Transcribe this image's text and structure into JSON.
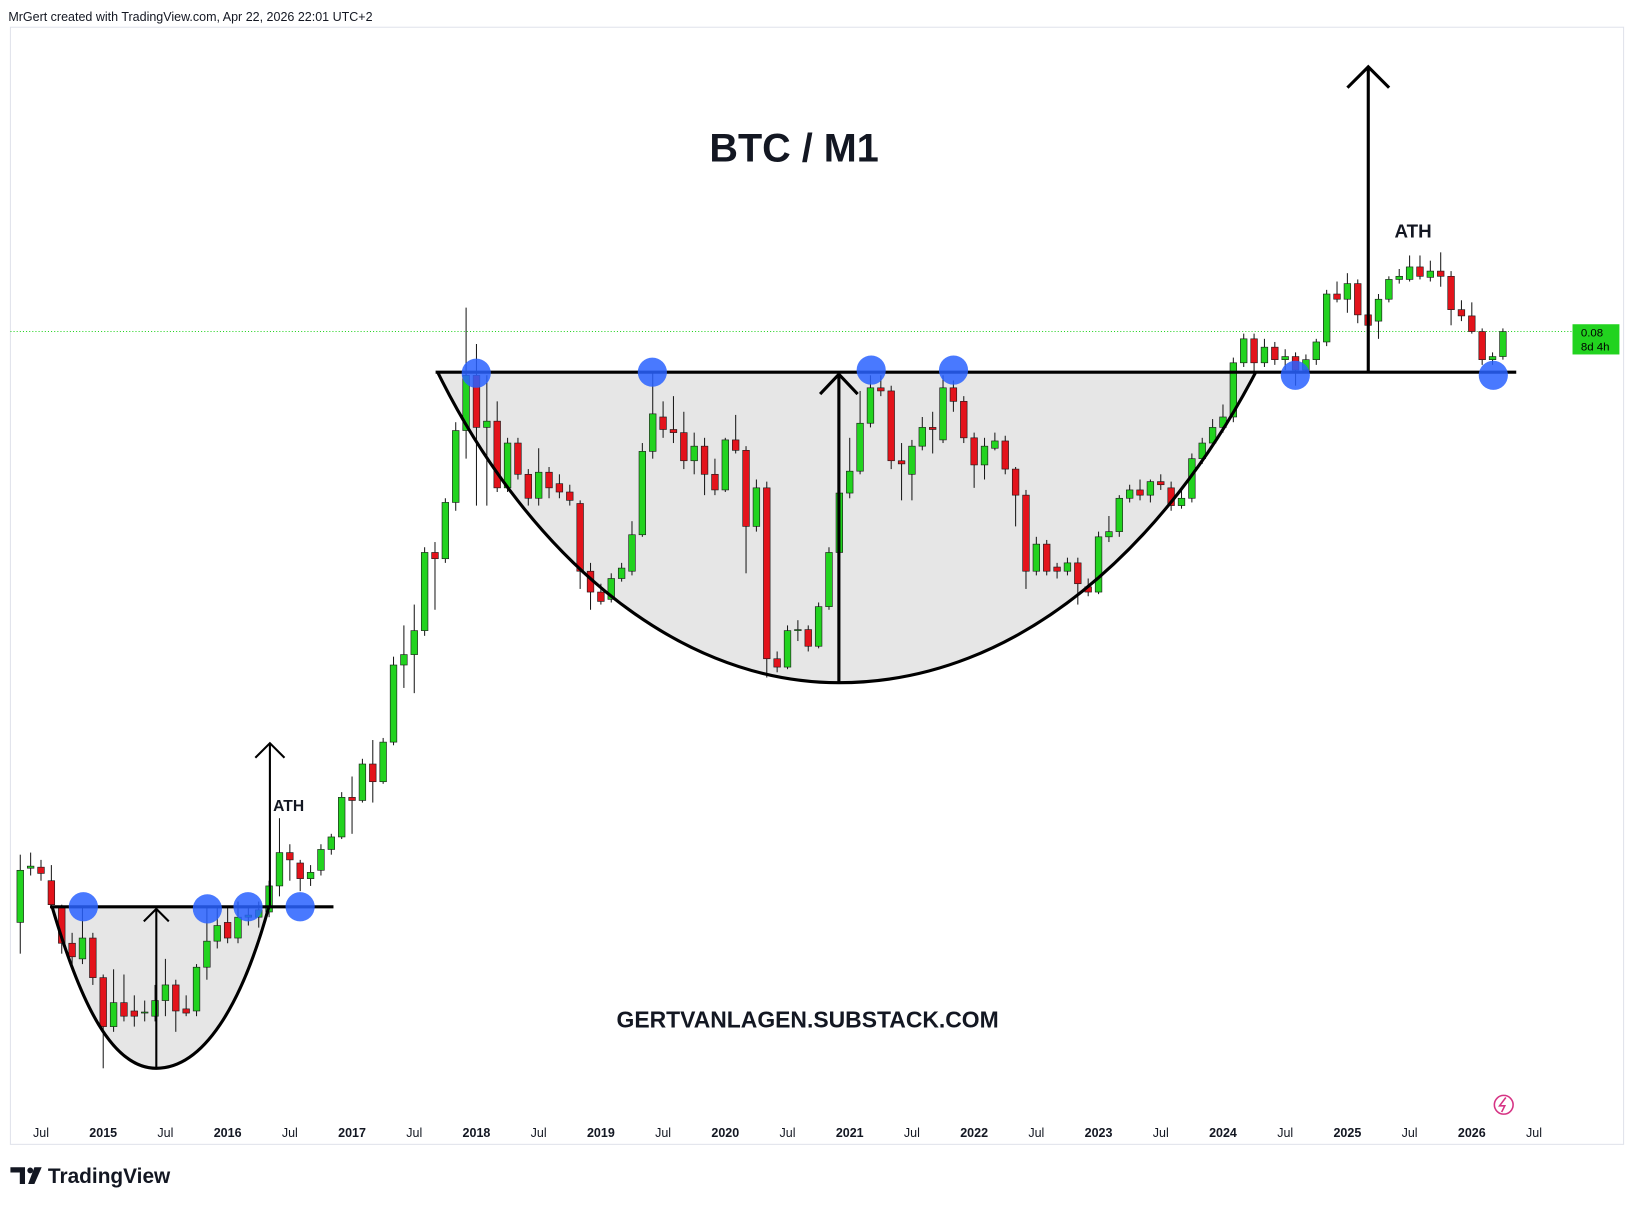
{
  "header": "MrGert created with TradingView.com, Apr 22, 2026 22:01 UTC+2",
  "footer": "TradingView",
  "chart_data": {
    "type": "candlestick",
    "title": "BTC / M1",
    "annotations": [
      "ATH",
      "ATH",
      "GERTVANLAGEN.SUBSTACK.COM"
    ],
    "last_price": 0.08,
    "countdown": "8d 4h",
    "up_color": "#22d31f",
    "down_color": "#e3131b",
    "xlim": [
      "2014-04",
      "2027-04"
    ],
    "ylim": [
      0.0043,
      0.1098
    ],
    "xticks": [
      {
        "value": "2014-07",
        "label": "Jul"
      },
      {
        "value": "2015-01",
        "label": "2015"
      },
      {
        "value": "2015-07",
        "label": "Jul"
      },
      {
        "value": "2016-01",
        "label": "2016"
      },
      {
        "value": "2016-07",
        "label": "Jul"
      },
      {
        "value": "2017-01",
        "label": "2017"
      },
      {
        "value": "2017-07",
        "label": "Jul"
      },
      {
        "value": "2018-01",
        "label": "2018"
      },
      {
        "value": "2018-07",
        "label": "Jul"
      },
      {
        "value": "2019-01",
        "label": "2019"
      },
      {
        "value": "2019-07",
        "label": "Jul"
      },
      {
        "value": "2020-01",
        "label": "2020"
      },
      {
        "value": "2020-07",
        "label": "Jul"
      },
      {
        "value": "2021-01",
        "label": "2021"
      },
      {
        "value": "2021-07",
        "label": "Jul"
      },
      {
        "value": "2022-01",
        "label": "2022"
      },
      {
        "value": "2022-07",
        "label": "Jul"
      },
      {
        "value": "2023-01",
        "label": "2023"
      },
      {
        "value": "2023-07",
        "label": "Jul"
      },
      {
        "value": "2024-01",
        "label": "2024"
      },
      {
        "value": "2024-07",
        "label": "Jul"
      },
      {
        "value": "2025-01",
        "label": "2025"
      },
      {
        "value": "2025-07",
        "label": "Jul"
      },
      {
        "value": "2026-01",
        "label": "2026"
      },
      {
        "value": "2026-07",
        "label": "Jul"
      }
    ],
    "x": [
      "2014-05",
      "2014-06",
      "2014-07",
      "2014-08",
      "2014-09",
      "2014-10",
      "2014-11",
      "2014-12",
      "2015-01",
      "2015-02",
      "2015-03",
      "2015-04",
      "2015-05",
      "2015-06",
      "2015-07",
      "2015-08",
      "2015-09",
      "2015-10",
      "2015-11",
      "2015-12",
      "2016-01",
      "2016-02",
      "2016-03",
      "2016-04",
      "2016-05",
      "2016-06",
      "2016-07",
      "2016-08",
      "2016-09",
      "2016-10",
      "2016-11",
      "2016-12",
      "2017-01",
      "2017-02",
      "2017-03",
      "2017-04",
      "2017-05",
      "2017-06",
      "2017-07",
      "2017-08",
      "2017-09",
      "2017-10",
      "2017-11",
      "2017-12",
      "2018-01",
      "2018-02",
      "2018-03",
      "2018-04",
      "2018-05",
      "2018-06",
      "2018-07",
      "2018-08",
      "2018-09",
      "2018-10",
      "2018-11",
      "2018-12",
      "2019-01",
      "2019-02",
      "2019-03",
      "2019-04",
      "2019-05",
      "2019-06",
      "2019-07",
      "2019-08",
      "2019-09",
      "2019-10",
      "2019-11",
      "2019-12",
      "2020-01",
      "2020-02",
      "2020-03",
      "2020-04",
      "2020-05",
      "2020-06",
      "2020-07",
      "2020-08",
      "2020-09",
      "2020-10",
      "2020-11",
      "2020-12",
      "2021-01",
      "2021-02",
      "2021-03",
      "2021-04",
      "2021-05",
      "2021-06",
      "2021-07",
      "2021-08",
      "2021-09",
      "2021-10",
      "2021-11",
      "2021-12",
      "2022-01",
      "2022-02",
      "2022-03",
      "2022-04",
      "2022-05",
      "2022-06",
      "2022-07",
      "2022-08",
      "2022-09",
      "2022-10",
      "2022-11",
      "2022-12",
      "2023-01",
      "2023-02",
      "2023-03",
      "2023-04",
      "2023-05",
      "2023-06",
      "2023-07",
      "2023-08",
      "2023-09",
      "2023-10",
      "2023-11",
      "2023-12",
      "2024-01",
      "2024-02",
      "2024-03",
      "2024-04",
      "2024-05",
      "2024-06",
      "2024-07",
      "2024-08",
      "2024-09",
      "2024-10",
      "2024-11",
      "2024-12",
      "2025-01",
      "2025-02",
      "2025-03",
      "2025-04",
      "2025-05",
      "2025-06",
      "2025-07",
      "2025-08",
      "2025-09",
      "2025-10",
      "2025-11",
      "2025-12",
      "2026-01",
      "2026-02",
      "2026-03",
      "2026-04"
    ],
    "open": [
      0.0233,
      0.0285,
      0.0286,
      0.0273,
      0.0248,
      0.0213,
      0.0198,
      0.0218,
      0.018,
      0.0133,
      0.0156,
      0.0148,
      0.0146,
      0.0143,
      0.0158,
      0.0173,
      0.015,
      0.0148,
      0.019,
      0.0215,
      0.0233,
      0.0218,
      0.0238,
      0.0238,
      0.0243,
      0.0268,
      0.03,
      0.029,
      0.0275,
      0.0283,
      0.0303,
      0.0315,
      0.0353,
      0.035,
      0.0385,
      0.0368,
      0.0406,
      0.048,
      0.049,
      0.0513,
      0.0588,
      0.0582,
      0.0636,
      0.0705,
      0.0758,
      0.0708,
      0.0714,
      0.065,
      0.0693,
      0.0663,
      0.064,
      0.0665,
      0.0654,
      0.0646,
      0.0635,
      0.057,
      0.055,
      0.0543,
      0.0563,
      0.057,
      0.0605,
      0.0685,
      0.0718,
      0.0706,
      0.0703,
      0.0676,
      0.069,
      0.0663,
      0.0648,
      0.0696,
      0.0686,
      0.0613,
      0.065,
      0.0486,
      0.0478,
      0.0513,
      0.0514,
      0.0498,
      0.0536,
      0.0588,
      0.0645,
      0.0666,
      0.0712,
      0.0746,
      0.0743,
      0.0676,
      0.0663,
      0.069,
      0.0708,
      0.0696,
      0.0746,
      0.0733,
      0.0698,
      0.0672,
      0.0688,
      0.0695,
      0.0668,
      0.0643,
      0.057,
      0.0596,
      0.0574,
      0.057,
      0.0578,
      0.0555,
      0.055,
      0.0603,
      0.0608,
      0.064,
      0.0648,
      0.0643,
      0.0656,
      0.065,
      0.0633,
      0.064,
      0.0678,
      0.0693,
      0.0708,
      0.0718,
      0.077,
      0.0793,
      0.077,
      0.0785,
      0.0773,
      0.0776,
      0.0763,
      0.0773,
      0.079,
      0.0836,
      0.0831,
      0.0846,
      0.0816,
      0.081,
      0.0831,
      0.085,
      0.085,
      0.0862,
      0.0852,
      0.0858,
      0.0853,
      0.0821,
      0.0815,
      0.08,
      0.0773,
      0.0776
    ],
    "high": [
      0.0298,
      0.03,
      0.0293,
      0.0288,
      0.025,
      0.0223,
      0.0248,
      0.0223,
      0.0183,
      0.0188,
      0.0183,
      0.0163,
      0.0158,
      0.0173,
      0.0198,
      0.0178,
      0.0163,
      0.0193,
      0.0248,
      0.0248,
      0.0248,
      0.0253,
      0.0248,
      0.0253,
      0.0273,
      0.0333,
      0.0308,
      0.0293,
      0.0288,
      0.0308,
      0.0318,
      0.0358,
      0.0373,
      0.039,
      0.0408,
      0.041,
      0.0488,
      0.0518,
      0.0538,
      0.0593,
      0.0598,
      0.064,
      0.0713,
      0.0823,
      0.0788,
      0.0758,
      0.0733,
      0.0698,
      0.0698,
      0.0668,
      0.0688,
      0.067,
      0.0663,
      0.0653,
      0.0638,
      0.0578,
      0.0558,
      0.0568,
      0.0578,
      0.0618,
      0.0693,
      0.076,
      0.0733,
      0.0738,
      0.0723,
      0.0703,
      0.0698,
      0.0678,
      0.0698,
      0.072,
      0.069,
      0.0658,
      0.0656,
      0.0493,
      0.0518,
      0.0523,
      0.0518,
      0.054,
      0.0593,
      0.0648,
      0.0698,
      0.0743,
      0.0758,
      0.0758,
      0.0748,
      0.0693,
      0.0696,
      0.0718,
      0.0723,
      0.0758,
      0.0753,
      0.0738,
      0.0703,
      0.0698,
      0.0703,
      0.07,
      0.067,
      0.0648,
      0.0603,
      0.06,
      0.0578,
      0.0583,
      0.0583,
      0.0563,
      0.0608,
      0.0623,
      0.0643,
      0.0653,
      0.0658,
      0.0658,
      0.0663,
      0.0656,
      0.0648,
      0.0683,
      0.0698,
      0.0716,
      0.073,
      0.0775,
      0.0798,
      0.0798,
      0.0793,
      0.079,
      0.0783,
      0.078,
      0.0778,
      0.0793,
      0.084,
      0.0848,
      0.0856,
      0.085,
      0.082,
      0.0836,
      0.0853,
      0.086,
      0.0873,
      0.0873,
      0.0868,
      0.0876,
      0.0858,
      0.083,
      0.0828,
      0.0803,
      0.078,
      0.0803
    ],
    "low": [
      0.0203,
      0.0278,
      0.0273,
      0.0248,
      0.0203,
      0.0193,
      0.0193,
      0.0173,
      0.0093,
      0.0128,
      0.0138,
      0.0133,
      0.0138,
      0.0138,
      0.0143,
      0.0128,
      0.0143,
      0.0143,
      0.0178,
      0.0208,
      0.0213,
      0.0213,
      0.023,
      0.0228,
      0.0238,
      0.0258,
      0.0273,
      0.0263,
      0.0268,
      0.0278,
      0.0298,
      0.0313,
      0.0318,
      0.0348,
      0.0348,
      0.0366,
      0.0403,
      0.0458,
      0.0453,
      0.0508,
      0.0533,
      0.0578,
      0.0628,
      0.0678,
      0.0633,
      0.0633,
      0.0646,
      0.0646,
      0.0658,
      0.0633,
      0.0633,
      0.064,
      0.064,
      0.0633,
      0.0553,
      0.0533,
      0.0538,
      0.054,
      0.056,
      0.0566,
      0.0603,
      0.0678,
      0.0698,
      0.0693,
      0.0668,
      0.0663,
      0.0643,
      0.0643,
      0.0646,
      0.0683,
      0.0568,
      0.0608,
      0.0468,
      0.0473,
      0.0476,
      0.0503,
      0.0493,
      0.0496,
      0.0533,
      0.0583,
      0.064,
      0.0663,
      0.0708,
      0.0738,
      0.0668,
      0.0638,
      0.0638,
      0.0686,
      0.0683,
      0.0693,
      0.0723,
      0.0693,
      0.065,
      0.0658,
      0.0686,
      0.0663,
      0.0613,
      0.0553,
      0.0566,
      0.0566,
      0.0563,
      0.0566,
      0.0538,
      0.0546,
      0.0548,
      0.0598,
      0.0603,
      0.0636,
      0.0638,
      0.0636,
      0.0648,
      0.0628,
      0.063,
      0.0636,
      0.0673,
      0.069,
      0.0703,
      0.0713,
      0.0766,
      0.0758,
      0.0766,
      0.0768,
      0.0763,
      0.0748,
      0.076,
      0.0768,
      0.0786,
      0.0828,
      0.0818,
      0.0808,
      0.08,
      0.0793,
      0.0828,
      0.0846,
      0.0848,
      0.085,
      0.0848,
      0.0843,
      0.0806,
      0.081,
      0.0798,
      0.0768,
      0.0768,
      0.0773
    ],
    "close": [
      0.0283,
      0.0287,
      0.028,
      0.025,
      0.0213,
      0.02,
      0.0218,
      0.018,
      0.0133,
      0.0156,
      0.0143,
      0.0143,
      0.0147,
      0.0158,
      0.0173,
      0.0148,
      0.0146,
      0.019,
      0.0215,
      0.023,
      0.0218,
      0.0238,
      0.024,
      0.0245,
      0.0268,
      0.03,
      0.0293,
      0.0275,
      0.0281,
      0.0303,
      0.0315,
      0.0353,
      0.035,
      0.0385,
      0.0368,
      0.0406,
      0.048,
      0.049,
      0.0513,
      0.0588,
      0.0582,
      0.0636,
      0.0705,
      0.0758,
      0.0708,
      0.0714,
      0.065,
      0.0693,
      0.0663,
      0.064,
      0.0665,
      0.065,
      0.0646,
      0.0638,
      0.057,
      0.055,
      0.0541,
      0.0563,
      0.0573,
      0.0605,
      0.0685,
      0.0721,
      0.0706,
      0.0703,
      0.0676,
      0.069,
      0.0663,
      0.0648,
      0.0696,
      0.0686,
      0.0613,
      0.065,
      0.0486,
      0.0478,
      0.0513,
      0.0514,
      0.0498,
      0.0536,
      0.0588,
      0.0645,
      0.0666,
      0.0712,
      0.0746,
      0.0743,
      0.0676,
      0.0673,
      0.069,
      0.0708,
      0.0706,
      0.0746,
      0.0733,
      0.0698,
      0.0672,
      0.069,
      0.0695,
      0.0668,
      0.0643,
      0.057,
      0.0596,
      0.057,
      0.057,
      0.0578,
      0.0558,
      0.055,
      0.0603,
      0.0608,
      0.064,
      0.0648,
      0.0643,
      0.0656,
      0.0653,
      0.0633,
      0.064,
      0.0678,
      0.0693,
      0.0708,
      0.0718,
      0.077,
      0.0793,
      0.077,
      0.0785,
      0.0773,
      0.0776,
      0.0763,
      0.0773,
      0.079,
      0.0836,
      0.0831,
      0.0846,
      0.0816,
      0.0806,
      0.0831,
      0.085,
      0.0853,
      0.0862,
      0.0853,
      0.0858,
      0.0853,
      0.0821,
      0.0815,
      0.08,
      0.0773,
      0.0776,
      0.08
    ]
  }
}
